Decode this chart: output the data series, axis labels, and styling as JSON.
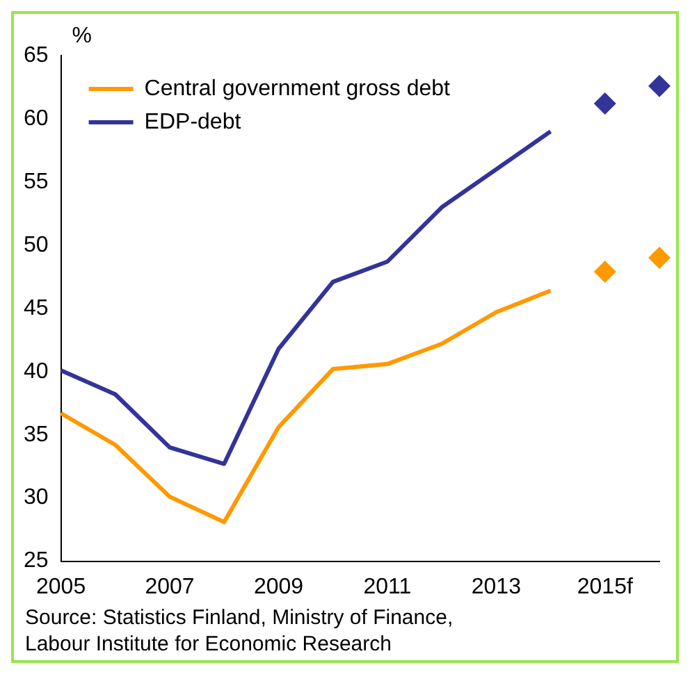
{
  "chart_data": {
    "type": "line",
    "ylabel": "%",
    "categories": [
      "2005",
      null,
      "2007",
      null,
      "2009",
      null,
      "2011",
      null,
      "2013",
      null,
      "2015f",
      null
    ],
    "series": [
      {
        "name": "Central government gross debt",
        "color": "#ff9900",
        "values": [
          36.7,
          34.2,
          30.1,
          28.1,
          35.6,
          40.2,
          40.6,
          42.2,
          44.7,
          46.4,
          null,
          null
        ]
      },
      {
        "name": "EDP-debt",
        "color": "#333399",
        "values": [
          40.1,
          38.2,
          34.0,
          32.7,
          41.8,
          47.1,
          48.7,
          53.0,
          56.0,
          59.0,
          null,
          null
        ]
      },
      {
        "type": "scatter",
        "color": "#ff9900",
        "marker": "diamond",
        "values": [
          null,
          null,
          null,
          null,
          null,
          null,
          null,
          null,
          null,
          null,
          47.9,
          49.0
        ]
      },
      {
        "type": "scatter",
        "color": "#333399",
        "marker": "diamond",
        "values": [
          null,
          null,
          null,
          null,
          null,
          null,
          null,
          null,
          null,
          null,
          61.2,
          62.6
        ]
      }
    ],
    "ylim": [
      25,
      65
    ],
    "yticks": [
      25,
      30,
      35,
      40,
      45,
      50,
      55,
      60,
      65
    ],
    "grid": false,
    "legend": "top left",
    "marker": "none",
    "line_style": "solid",
    "annotations": [
      "Source: Statistics Finland, Ministry of Finance,",
      "Labour Institute for Economic Research"
    ]
  }
}
